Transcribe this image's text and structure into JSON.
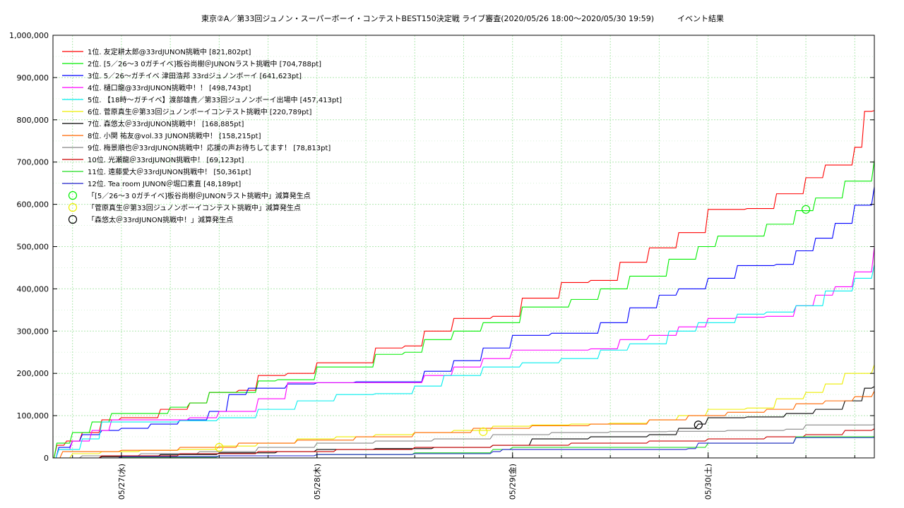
{
  "chart_data": {
    "type": "line",
    "title": "東京②A／第33回ジュノン・スーパーボーイ・コンテストBEST150決定戦 ライブ審査(2020/05/26 18:00〜2020/05/30 19:59)　　　イベント結果",
    "xlabel": "",
    "ylabel": "",
    "x_unit": "days since 2020/05/26 00:00",
    "xlim": [
      0.65,
      4.85
    ],
    "ylim": [
      0,
      1000000
    ],
    "grid": true,
    "legend_position": "top-left",
    "y_ticks": [
      "0",
      "100,000",
      "200,000",
      "300,000",
      "400,000",
      "500,000",
      "600,000",
      "700,000",
      "800,000",
      "900,000",
      "1,000,000"
    ],
    "x_ticks": [
      {
        "label": "05/27(水)",
        "x": 1
      },
      {
        "label": "05/28(木)",
        "x": 2
      },
      {
        "label": "05/29(金)",
        "x": 3
      },
      {
        "label": "05/30(土)",
        "x": 4
      }
    ],
    "series": [
      {
        "name": "1位. 友定耕太郎@33rdJUNON挑戦中 [821,802pt]",
        "color": "#ff0000",
        "x": [
          0.65,
          0.67,
          0.72,
          0.8,
          0.9,
          1.0,
          1.2,
          1.35,
          1.45,
          1.6,
          1.7,
          1.85,
          2.0,
          2.1,
          2.3,
          2.45,
          2.55,
          2.7,
          2.9,
          3.05,
          3.25,
          3.4,
          3.55,
          3.7,
          3.85,
          4.0,
          4.2,
          4.35,
          4.5,
          4.6,
          4.75,
          4.8,
          4.85
        ],
        "y": [
          0,
          30000,
          40000,
          60000,
          90000,
          95000,
          115000,
          130000,
          155000,
          160000,
          195000,
          200000,
          225000,
          225000,
          260000,
          265000,
          300000,
          330000,
          335000,
          378000,
          415000,
          420000,
          463000,
          497000,
          533000,
          588000,
          590000,
          625000,
          663000,
          693000,
          735000,
          820000,
          821802
        ]
      },
      {
        "name": "2位. [5／26〜3 0ガチイベ]板谷尚樹＠JUNONラスト挑戦中 [704,788pt]",
        "color": "#00ee00",
        "x": [
          0.65,
          0.67,
          0.75,
          0.85,
          0.95,
          1.1,
          1.25,
          1.35,
          1.45,
          1.6,
          1.7,
          1.8,
          2.0,
          2.2,
          2.3,
          2.45,
          2.55,
          2.7,
          2.85,
          3.05,
          3.3,
          3.45,
          3.6,
          3.8,
          3.95,
          4.05,
          4.2,
          4.3,
          4.45,
          4.55,
          4.7,
          4.85
        ],
        "y": [
          0,
          35000,
          60000,
          85000,
          105000,
          105000,
          120000,
          130000,
          155000,
          155000,
          182000,
          185000,
          215000,
          215000,
          245000,
          250000,
          280000,
          300000,
          320000,
          357000,
          375000,
          400000,
          430000,
          470000,
          500000,
          525000,
          525000,
          553000,
          585000,
          615000,
          655000,
          704788
        ]
      },
      {
        "name": "3位. 5／26〜ガチイベ 津田浩邦 33rdジュノンボーイ [641,623pt]",
        "color": "#0000ff",
        "x": [
          0.65,
          0.68,
          0.75,
          0.8,
          0.9,
          1.0,
          1.15,
          1.3,
          1.45,
          1.55,
          1.65,
          1.85,
          2.0,
          2.2,
          2.45,
          2.55,
          2.7,
          2.85,
          3.0,
          3.2,
          3.45,
          3.6,
          3.75,
          3.85,
          4.0,
          4.15,
          4.35,
          4.45,
          4.55,
          4.65,
          4.75,
          4.85
        ],
        "y": [
          0,
          25000,
          40000,
          55000,
          65000,
          70000,
          80000,
          90000,
          110000,
          150000,
          165000,
          175000,
          178000,
          180000,
          180000,
          205000,
          230000,
          260000,
          290000,
          295000,
          320000,
          355000,
          385000,
          400000,
          425000,
          455000,
          458000,
          490000,
          520000,
          555000,
          598000,
          641623
        ]
      },
      {
        "name": "4位. 樋口龍@33rdJUNON挑戦中！！ [498,743pt]",
        "color": "#ff00ff",
        "x": [
          0.65,
          0.68,
          0.75,
          0.85,
          0.95,
          1.1,
          1.35,
          1.5,
          1.7,
          1.85,
          2.1,
          2.4,
          2.55,
          2.7,
          2.85,
          3.0,
          3.25,
          3.4,
          3.55,
          3.7,
          3.85,
          4.0,
          4.15,
          4.3,
          4.45,
          4.55,
          4.65,
          4.75,
          4.85
        ],
        "y": [
          0,
          20000,
          40000,
          65000,
          90000,
          90000,
          95000,
          110000,
          140000,
          178000,
          178000,
          178000,
          195000,
          215000,
          235000,
          255000,
          255000,
          258000,
          280000,
          290000,
          310000,
          330000,
          333000,
          335000,
          360000,
          385000,
          405000,
          440000,
          498743
        ]
      },
      {
        "name": "5位. 【18時〜ガチイベ】渡部雄貴／第33回ジュノンボーイ出場中 [457,413pt]",
        "color": "#00eeee",
        "x": [
          0.65,
          0.68,
          0.8,
          0.9,
          1.1,
          1.3,
          1.5,
          1.7,
          1.9,
          2.1,
          2.3,
          2.5,
          2.65,
          2.85,
          3.05,
          3.25,
          3.45,
          3.6,
          3.8,
          3.95,
          4.15,
          4.3,
          4.45,
          4.6,
          4.75,
          4.85
        ],
        "y": [
          0,
          20000,
          45000,
          85000,
          85000,
          88000,
          95000,
          115000,
          135000,
          150000,
          152000,
          170000,
          195000,
          215000,
          225000,
          235000,
          255000,
          270000,
          300000,
          320000,
          340000,
          345000,
          360000,
          395000,
          425000,
          457413
        ]
      },
      {
        "name": "6位. 菅原真生＠第33回ジュノンボーイコンテスト挑戦中 [220,789pt]",
        "color": "#eeee00",
        "x": [
          0.65,
          0.75,
          0.9,
          1.1,
          1.3,
          1.5,
          1.7,
          1.9,
          2.1,
          2.3,
          2.5,
          2.7,
          2.9,
          3.1,
          3.3,
          3.5,
          3.7,
          3.85,
          4.0,
          4.2,
          4.35,
          4.5,
          4.6,
          4.7,
          4.85
        ],
        "y": [
          0,
          10000,
          15000,
          18000,
          20000,
          28000,
          35000,
          45000,
          50000,
          55000,
          60000,
          65000,
          75000,
          78000,
          80000,
          82000,
          90000,
          100000,
          115000,
          118000,
          140000,
          155000,
          175000,
          200000,
          220789
        ]
      },
      {
        "name": "7位. 森悠太＠33rdJUNON挑戦中！ [168,885pt]",
        "color": "#000000",
        "x": [
          0.65,
          0.9,
          1.2,
          1.5,
          1.8,
          2.0,
          2.3,
          2.6,
          2.9,
          3.1,
          3.4,
          3.7,
          3.85,
          3.95,
          4.0,
          4.2,
          4.4,
          4.55,
          4.7,
          4.8,
          4.85
        ],
        "y": [
          0,
          3000,
          8000,
          12000,
          15000,
          20000,
          22000,
          25000,
          30000,
          45000,
          50000,
          55000,
          70000,
          80000,
          95000,
          97000,
          105000,
          115000,
          135000,
          165000,
          168885
        ]
      },
      {
        "name": "8位. 小関 祐友@vol.33 JUNON挑戦中！ [158,215pt]",
        "color": "#ff6600",
        "x": [
          0.65,
          0.7,
          1.0,
          1.3,
          1.6,
          1.9,
          2.2,
          2.5,
          2.8,
          3.1,
          3.4,
          3.7,
          3.9,
          4.1,
          4.3,
          4.45,
          4.6,
          4.75,
          4.85
        ],
        "y": [
          0,
          15000,
          18000,
          25000,
          35000,
          42000,
          50000,
          60000,
          70000,
          76000,
          80000,
          90000,
          100000,
          108000,
          115000,
          128000,
          135000,
          145000,
          158215
        ]
      },
      {
        "name": "9位. 梅景順也＠33rdJUNON挑戦中！応援の声お待ちしてます！ [78,813pt]",
        "color": "#888888",
        "x": [
          0.65,
          0.8,
          1.1,
          1.4,
          1.7,
          2.0,
          2.3,
          2.6,
          2.9,
          3.2,
          3.5,
          3.8,
          4.1,
          4.4,
          4.5,
          4.85
        ],
        "y": [
          0,
          5000,
          10000,
          15000,
          25000,
          35000,
          40000,
          45000,
          55000,
          60000,
          62000,
          63000,
          65000,
          68000,
          78000,
          78813
        ]
      },
      {
        "name": "10位. 光瀬龍＠33rdJUNON挑戦中！ [69,123pt]",
        "color": "#cc0000",
        "x": [
          0.65,
          0.9,
          1.3,
          1.7,
          2.1,
          2.5,
          2.9,
          3.3,
          3.7,
          4.0,
          4.3,
          4.5,
          4.7,
          4.85
        ],
        "y": [
          0,
          5000,
          10000,
          15000,
          20000,
          25000,
          30000,
          35000,
          40000,
          45000,
          50000,
          55000,
          65000,
          69123
        ]
      },
      {
        "name": "11位. 遠藤愛大＠33rdJUNON挑戦中！ [50,361pt]",
        "color": "#22dd22",
        "x": [
          0.65,
          1.0,
          1.5,
          2.0,
          2.5,
          2.9,
          3.0,
          3.5,
          3.9,
          4.0,
          4.4,
          4.45,
          4.85
        ],
        "y": [
          0,
          2000,
          5000,
          8000,
          12000,
          20000,
          25000,
          25000,
          25000,
          35000,
          35000,
          50000,
          50361
        ]
      },
      {
        "name": "12位. Tea room JUNON＠堀口素直 [48,189pt]",
        "color": "#2222cc",
        "x": [
          0.65,
          1.0,
          1.5,
          2.0,
          2.5,
          2.9,
          2.95,
          3.5,
          3.9,
          3.95,
          4.4,
          4.45,
          4.85
        ],
        "y": [
          0,
          3000,
          5000,
          8000,
          10000,
          15000,
          20000,
          20000,
          22000,
          35000,
          35000,
          48000,
          48189
        ]
      }
    ],
    "markers": [
      {
        "name": "「[5／26〜3 0ガチイベ]板谷尚樹＠JUNONラスト挑戦中」減算発生点",
        "color": "#00ee00",
        "points": [
          {
            "x": 4.5,
            "y": 588000
          }
        ]
      },
      {
        "name": "「菅原真生＠第33回ジュノンボーイコンテスト挑戦中」減算発生点",
        "color": "#eeee00",
        "points": [
          {
            "x": 1.5,
            "y": 25000
          },
          {
            "x": 2.85,
            "y": 62000
          }
        ]
      },
      {
        "name": "「森悠太＠33rdJUNON挑戦中！」減算発生点",
        "color": "#000000",
        "points": [
          {
            "x": 3.95,
            "y": 78000
          }
        ]
      }
    ]
  }
}
